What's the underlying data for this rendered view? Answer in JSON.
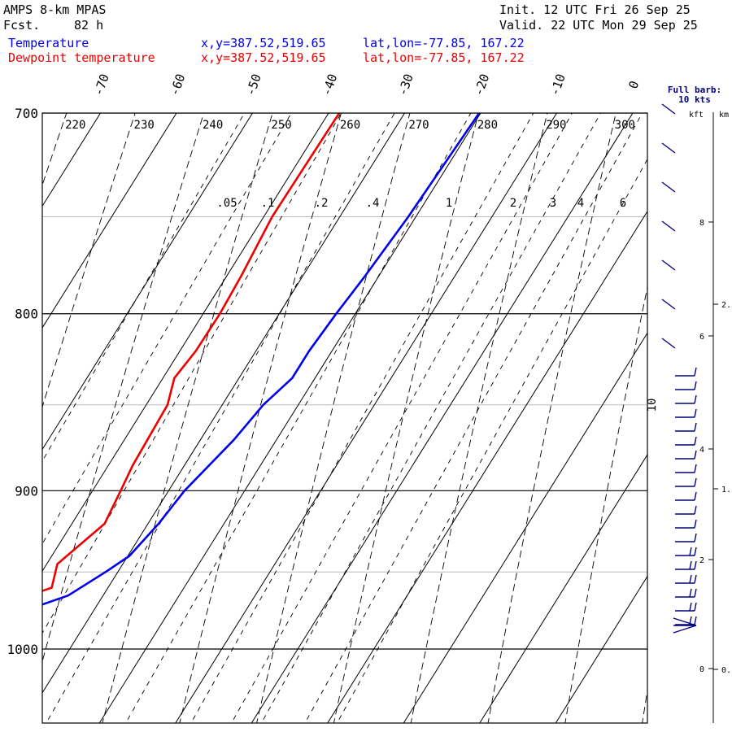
{
  "header": {
    "model": "AMPS 8-km MPAS",
    "fcst_label": "Fcst.",
    "fcst_value": "82 h",
    "init": "Init. 12 UTC Fri 26 Sep 25",
    "valid": "Valid. 22 UTC Mon 29 Sep 25",
    "temp_label": "Temperature",
    "dew_label": "Dewpoint temperature",
    "xy_temp": "x,y=387.52,519.65",
    "latlon_temp": "lat,lon=-77.85, 167.22",
    "xy_dew": "x,y=387.52,519.65",
    "latlon_dew": "lat,lon=-77.85, 167.22"
  },
  "chart_data": {
    "type": "line",
    "title": "",
    "ylabel": "",
    "y_axis": {
      "scale": "log",
      "range": [
        1045,
        700
      ],
      "ticks": [
        700,
        800,
        900,
        1000
      ],
      "tick_labels": [
        "700",
        "800",
        "900",
        "1000"
      ],
      "gridlines": [
        700,
        750,
        800,
        850,
        900,
        950,
        1000
      ]
    },
    "x_axis": {
      "skew": true,
      "ticks": [
        -70,
        -60,
        -50,
        -40,
        -30,
        -20,
        -10,
        0
      ],
      "tick_labels": [
        "-70",
        "-60",
        "-50",
        "-40",
        "-30",
        "-20",
        "-10",
        "0"
      ]
    },
    "isotherm_10_label": "10",
    "dry_adiabats": [
      220,
      230,
      240,
      250,
      260,
      270,
      280,
      290,
      300
    ],
    "dry_adiabat_labels": [
      "220",
      "230",
      "240",
      "250",
      "260",
      "270",
      "280",
      "290",
      "300"
    ],
    "mixing_ratio_labels": [
      ".05",
      ".1",
      ".2",
      ".4",
      "1",
      "2",
      "3",
      "4",
      "6"
    ],
    "series": [
      {
        "name": "Temperature",
        "color": "#0000ee",
        "points": [
          [
            700,
            -20.2
          ],
          [
            750,
            -21.0
          ],
          [
            780,
            -21.8
          ],
          [
            800,
            -22.5
          ],
          [
            820,
            -23.0
          ],
          [
            835,
            -23.0
          ],
          [
            850,
            -24.6
          ],
          [
            870,
            -25.6
          ],
          [
            900,
            -27.9
          ],
          [
            920,
            -28.6
          ],
          [
            940,
            -29.8
          ],
          [
            950,
            -31.6
          ],
          [
            965,
            -34.6
          ],
          [
            972,
            -37.8
          ],
          [
            977,
            -42.0
          ]
        ]
      },
      {
        "name": "Dewpoint temperature",
        "color": "#ee0000",
        "points": [
          [
            700,
            -38.6
          ],
          [
            750,
            -38.9
          ],
          [
            780,
            -38.1
          ],
          [
            800,
            -37.8
          ],
          [
            820,
            -37.9
          ],
          [
            835,
            -38.5
          ],
          [
            850,
            -37.2
          ],
          [
            885,
            -36.8
          ],
          [
            900,
            -36.3
          ],
          [
            920,
            -35.7
          ],
          [
            945,
            -38.6
          ],
          [
            960,
            -37.4
          ],
          [
            967,
            -40.7
          ],
          [
            975,
            -38.6
          ],
          [
            980,
            -41.0
          ],
          [
            985,
            -40.8
          ],
          [
            988,
            -42.5
          ]
        ]
      }
    ]
  },
  "wind_panel": {
    "full_barb_label": "Full barb:",
    "full_barb_value": "10 kts",
    "kft_label": "kft",
    "km_label": "km",
    "kft_ticks": [
      "8",
      "6",
      "4",
      "2",
      "0"
    ],
    "km_ticks": [
      "2.",
      "1.",
      "0."
    ]
  }
}
